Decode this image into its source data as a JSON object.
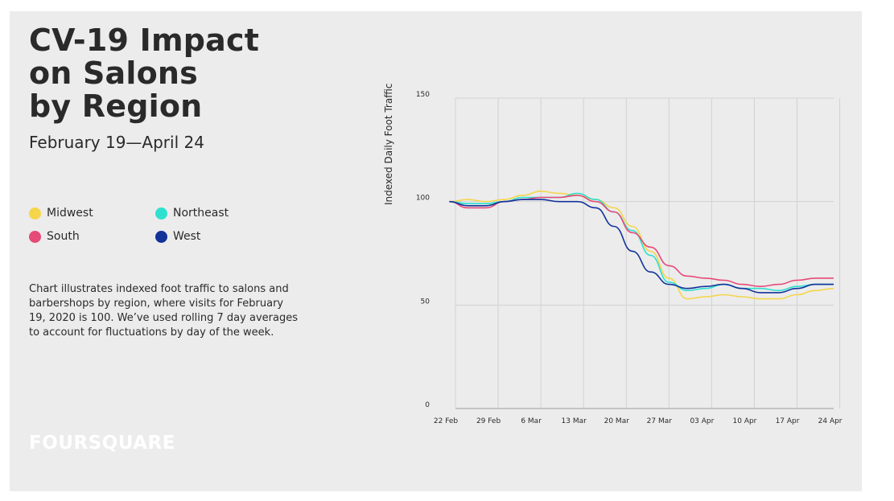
{
  "header": {
    "title": "CV-19 Impact\non Salons\nby Region",
    "subtitle": "February 19—April 24"
  },
  "legend": [
    {
      "label": "Midwest",
      "color": "#f5d54a"
    },
    {
      "label": "Northeast",
      "color": "#2fe0d0"
    },
    {
      "label": "South",
      "color": "#e64a78"
    },
    {
      "label": "West",
      "color": "#12329a"
    }
  ],
  "description": "Chart illustrates indexed foot traffic to salons and barbershops by region, where visits for February 19, 2020 is 100. We’ve used rolling 7 day averages to account for fluctuations by day of the week.",
  "brand": {
    "logo_text": "FOURSQUARE"
  },
  "chart_data": {
    "type": "line",
    "ylabel": "Indexed Daily Foot Traffic",
    "ylim": [
      0,
      150
    ],
    "yticks": [
      "0",
      "50",
      "100",
      "150"
    ],
    "xticks": [
      "22 Feb",
      "29 Feb",
      "6 Mar",
      "13 Mar",
      "20 Mar",
      "27 Mar",
      "03 Apr",
      "10 Apr",
      "17 Apr",
      "24 Apr"
    ],
    "x": [
      "Feb 21",
      "Feb 24",
      "Feb 27",
      "Mar 1",
      "Mar 4",
      "Mar 7",
      "Mar 10",
      "Mar 13",
      "Mar 16",
      "Mar 19",
      "Mar 22",
      "Mar 25",
      "Mar 28",
      "Mar 31",
      "Apr 3",
      "Apr 6",
      "Apr 9",
      "Apr 12",
      "Apr 15",
      "Apr 18",
      "Apr 21",
      "Apr 24"
    ],
    "grid": true,
    "series": [
      {
        "name": "Midwest",
        "color": "#f5d54a",
        "values": [
          100,
          101,
          100,
          101,
          103,
          105,
          104,
          103,
          101,
          97,
          88,
          76,
          63,
          53,
          54,
          55,
          54,
          53,
          53,
          55,
          57,
          58
        ]
      },
      {
        "name": "Northeast",
        "color": "#2fe0d0",
        "values": [
          100,
          99,
          99,
          100,
          102,
          102,
          102,
          104,
          101,
          95,
          86,
          74,
          61,
          57,
          58,
          60,
          58,
          58,
          57,
          59,
          60,
          60
        ]
      },
      {
        "name": "South",
        "color": "#e64a78",
        "values": [
          100,
          97,
          97,
          100,
          101,
          102,
          102,
          103,
          100,
          95,
          85,
          78,
          69,
          64,
          63,
          62,
          60,
          59,
          60,
          62,
          63,
          63
        ]
      },
      {
        "name": "West",
        "color": "#12329a",
        "values": [
          100,
          98,
          98,
          100,
          101,
          101,
          100,
          100,
          97,
          88,
          76,
          66,
          60,
          58,
          59,
          60,
          58,
          56,
          56,
          58,
          60,
          60
        ]
      }
    ]
  }
}
